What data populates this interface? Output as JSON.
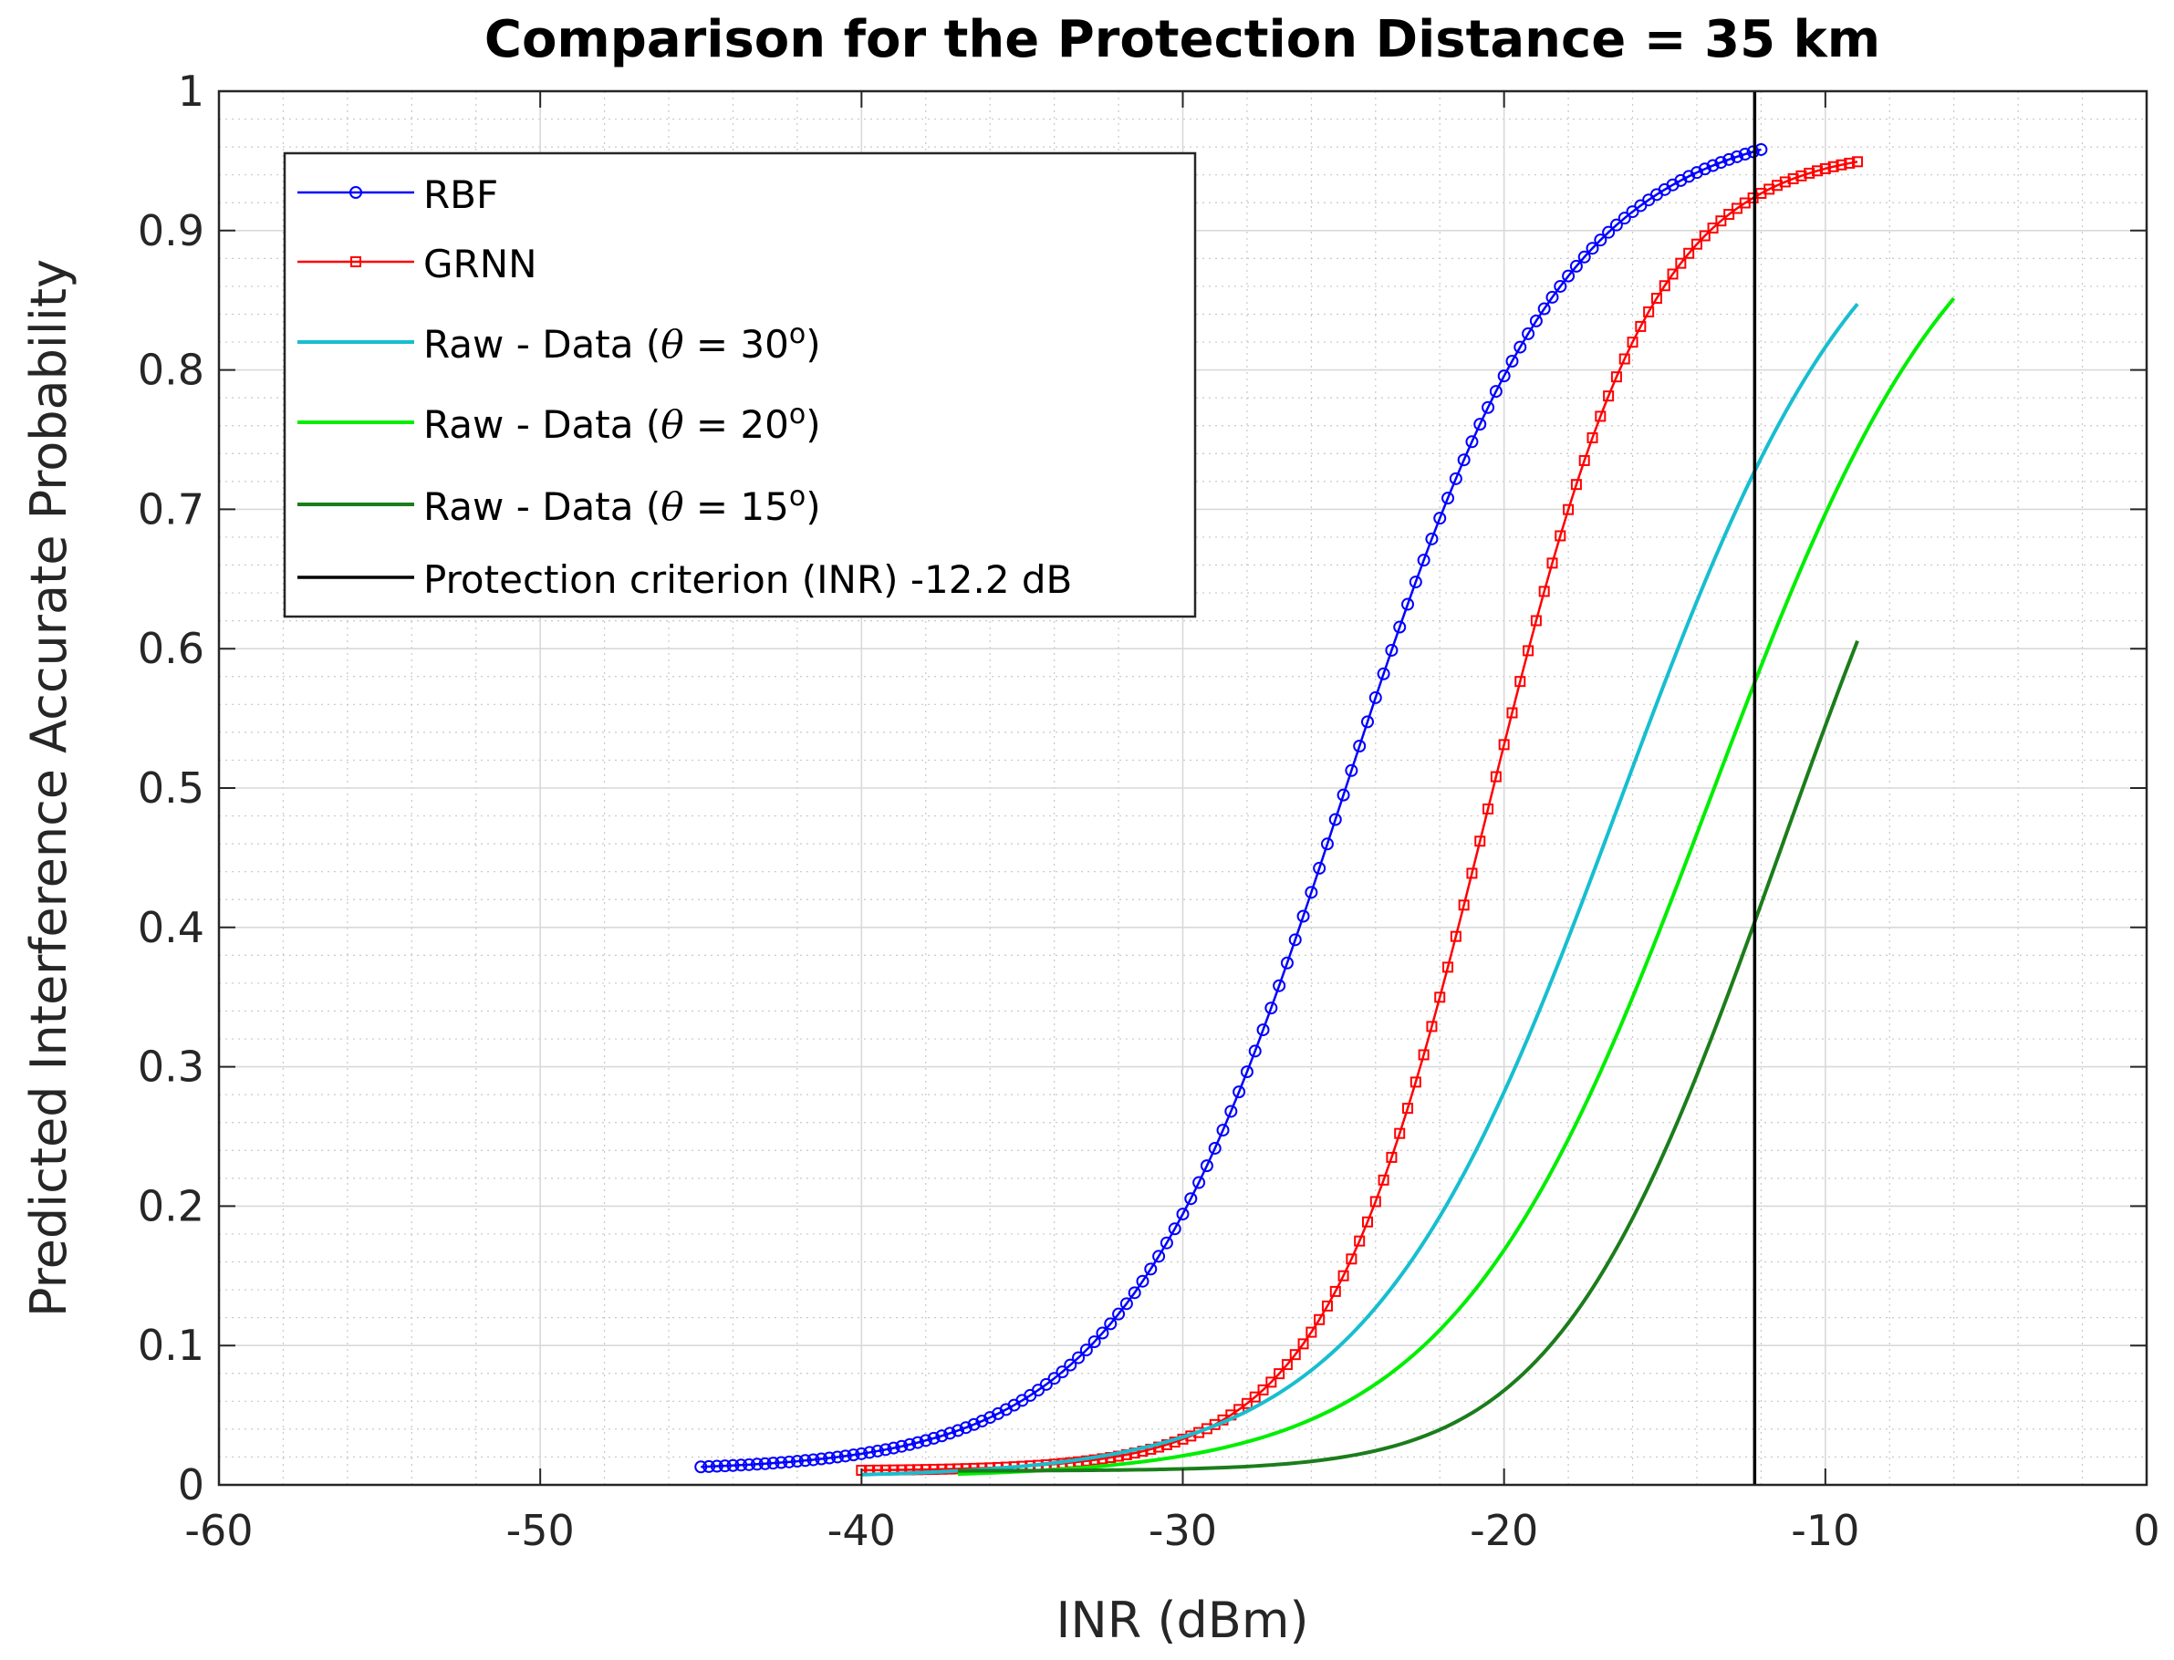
{
  "chart_data": {
    "type": "line",
    "title": "Comparison for the Protection Distance = 35 km",
    "xlabel": "INR (dBm)",
    "ylabel": "Predicted Interference Accurate Probability",
    "xlim": [
      -60,
      0
    ],
    "ylim": [
      0,
      1
    ],
    "xticks": [
      -60,
      -50,
      -40,
      -30,
      -20,
      -10,
      0
    ],
    "xtick_labels": [
      "-60",
      "-50",
      "-40",
      "-30",
      "-20",
      "-10",
      "0"
    ],
    "yticks": [
      0,
      0.1,
      0.2,
      0.3,
      0.4,
      0.5,
      0.6,
      0.7,
      0.8,
      0.9,
      1
    ],
    "ytick_labels": [
      "0",
      "0.1",
      "0.2",
      "0.3",
      "0.4",
      "0.5",
      "0.6",
      "0.7",
      "0.8",
      "0.9",
      "1"
    ],
    "grid": true,
    "minor_grid": true,
    "legend_position": "top-left",
    "series": [
      {
        "name": "RBF",
        "legend_main": "RBF",
        "legend_theta": "",
        "legend_rest": "",
        "legend_sup": "",
        "legend_close": "",
        "color": "#0000ff",
        "marker": "circle",
        "line_width": 2.5,
        "x_range": [
          -45,
          -12
        ],
        "step": 0.25,
        "model": {
          "base": 0.01,
          "top": 0.98,
          "center": -25,
          "k": 0.29,
          "power": 1
        }
      },
      {
        "name": "GRNN",
        "legend_main": "GRNN",
        "legend_theta": "",
        "legend_rest": "",
        "legend_sup": "",
        "legend_close": "",
        "color": "#ff0000",
        "marker": "square",
        "line_width": 2.5,
        "x_range": [
          -40,
          -9
        ],
        "step": 0.25,
        "model": {
          "base": 0.01,
          "top": 0.96,
          "center": -20.5,
          "k": 0.39,
          "power": 1
        }
      },
      {
        "name": "Raw - Data (θ = 30o)",
        "legend_main": "Raw - Data (",
        "legend_theta": "θ",
        "legend_rest": " = 30",
        "legend_sup": "o",
        "legend_close": ")",
        "color": "#17becf",
        "marker": "none",
        "line_width": 4,
        "x_range": [
          -40,
          -9
        ],
        "step": 0.2,
        "model": {
          "base": 0.005,
          "top": 0.975,
          "center": -16.4,
          "k": 0.255,
          "power": 1
        }
      },
      {
        "name": "Raw - Data (θ = 20o)",
        "legend_main": "Raw - Data (",
        "legend_theta": "θ",
        "legend_rest": " = 20",
        "legend_sup": "o",
        "legend_close": ")",
        "color": "#00ee00",
        "marker": "none",
        "line_width": 4,
        "x_range": [
          -37,
          -6
        ],
        "step": 0.2,
        "model": {
          "base": 0.005,
          "top": 0.978,
          "center": -13.6,
          "k": 0.25,
          "power": 1
        }
      },
      {
        "name": "Raw - Data (θ = 15o)",
        "legend_main": "Raw - Data (",
        "legend_theta": "θ",
        "legend_rest": " = 15",
        "legend_sup": "o",
        "legend_close": ")",
        "color": "#1b7d1b",
        "marker": "none",
        "line_width": 4,
        "x_range": [
          -37,
          -9
        ],
        "step": 0.2,
        "model": {
          "base": 0.01,
          "top": 0.999,
          "center": -14.0,
          "k": 0.2245,
          "power": 1.8
        }
      },
      {
        "name": "Protection criterion (INR) -12.2 dB",
        "legend_main": "Protection criterion (INR) -12.2 dB",
        "legend_theta": "",
        "legend_rest": "",
        "legend_sup": "",
        "legend_close": "",
        "color": "#000000",
        "marker": "none",
        "line_width": 3.5,
        "vertical_x": -12.2
      }
    ]
  }
}
